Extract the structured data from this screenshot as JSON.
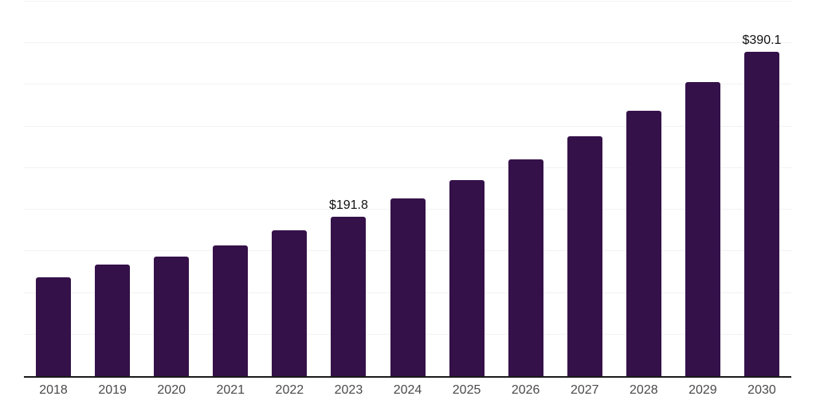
{
  "chart_data": {
    "type": "bar",
    "title": "",
    "xlabel": "",
    "ylabel": "",
    "categories": [
      "2018",
      "2019",
      "2020",
      "2021",
      "2022",
      "2023",
      "2024",
      "2025",
      "2026",
      "2027",
      "2028",
      "2029",
      "2030"
    ],
    "values": [
      118.7,
      134.0,
      143.6,
      157.0,
      175.2,
      191.8,
      213.5,
      235.5,
      260.4,
      288.2,
      318.8,
      353.3,
      390.1
    ],
    "data_labels": [
      "",
      "",
      "",
      "",
      "",
      "$191.8",
      "",
      "",
      "",
      "",
      "",
      "",
      "$390.1"
    ],
    "ylim": [
      0,
      450
    ],
    "gridline_step": 50,
    "grid": true,
    "legend": false,
    "colors": {
      "bar": "#351149",
      "gridline": "#f2f2f2",
      "axis_line": "#1a1a1a",
      "tick_label": "#4a4a4a",
      "data_label": "#111111",
      "background": "#ffffff"
    }
  }
}
